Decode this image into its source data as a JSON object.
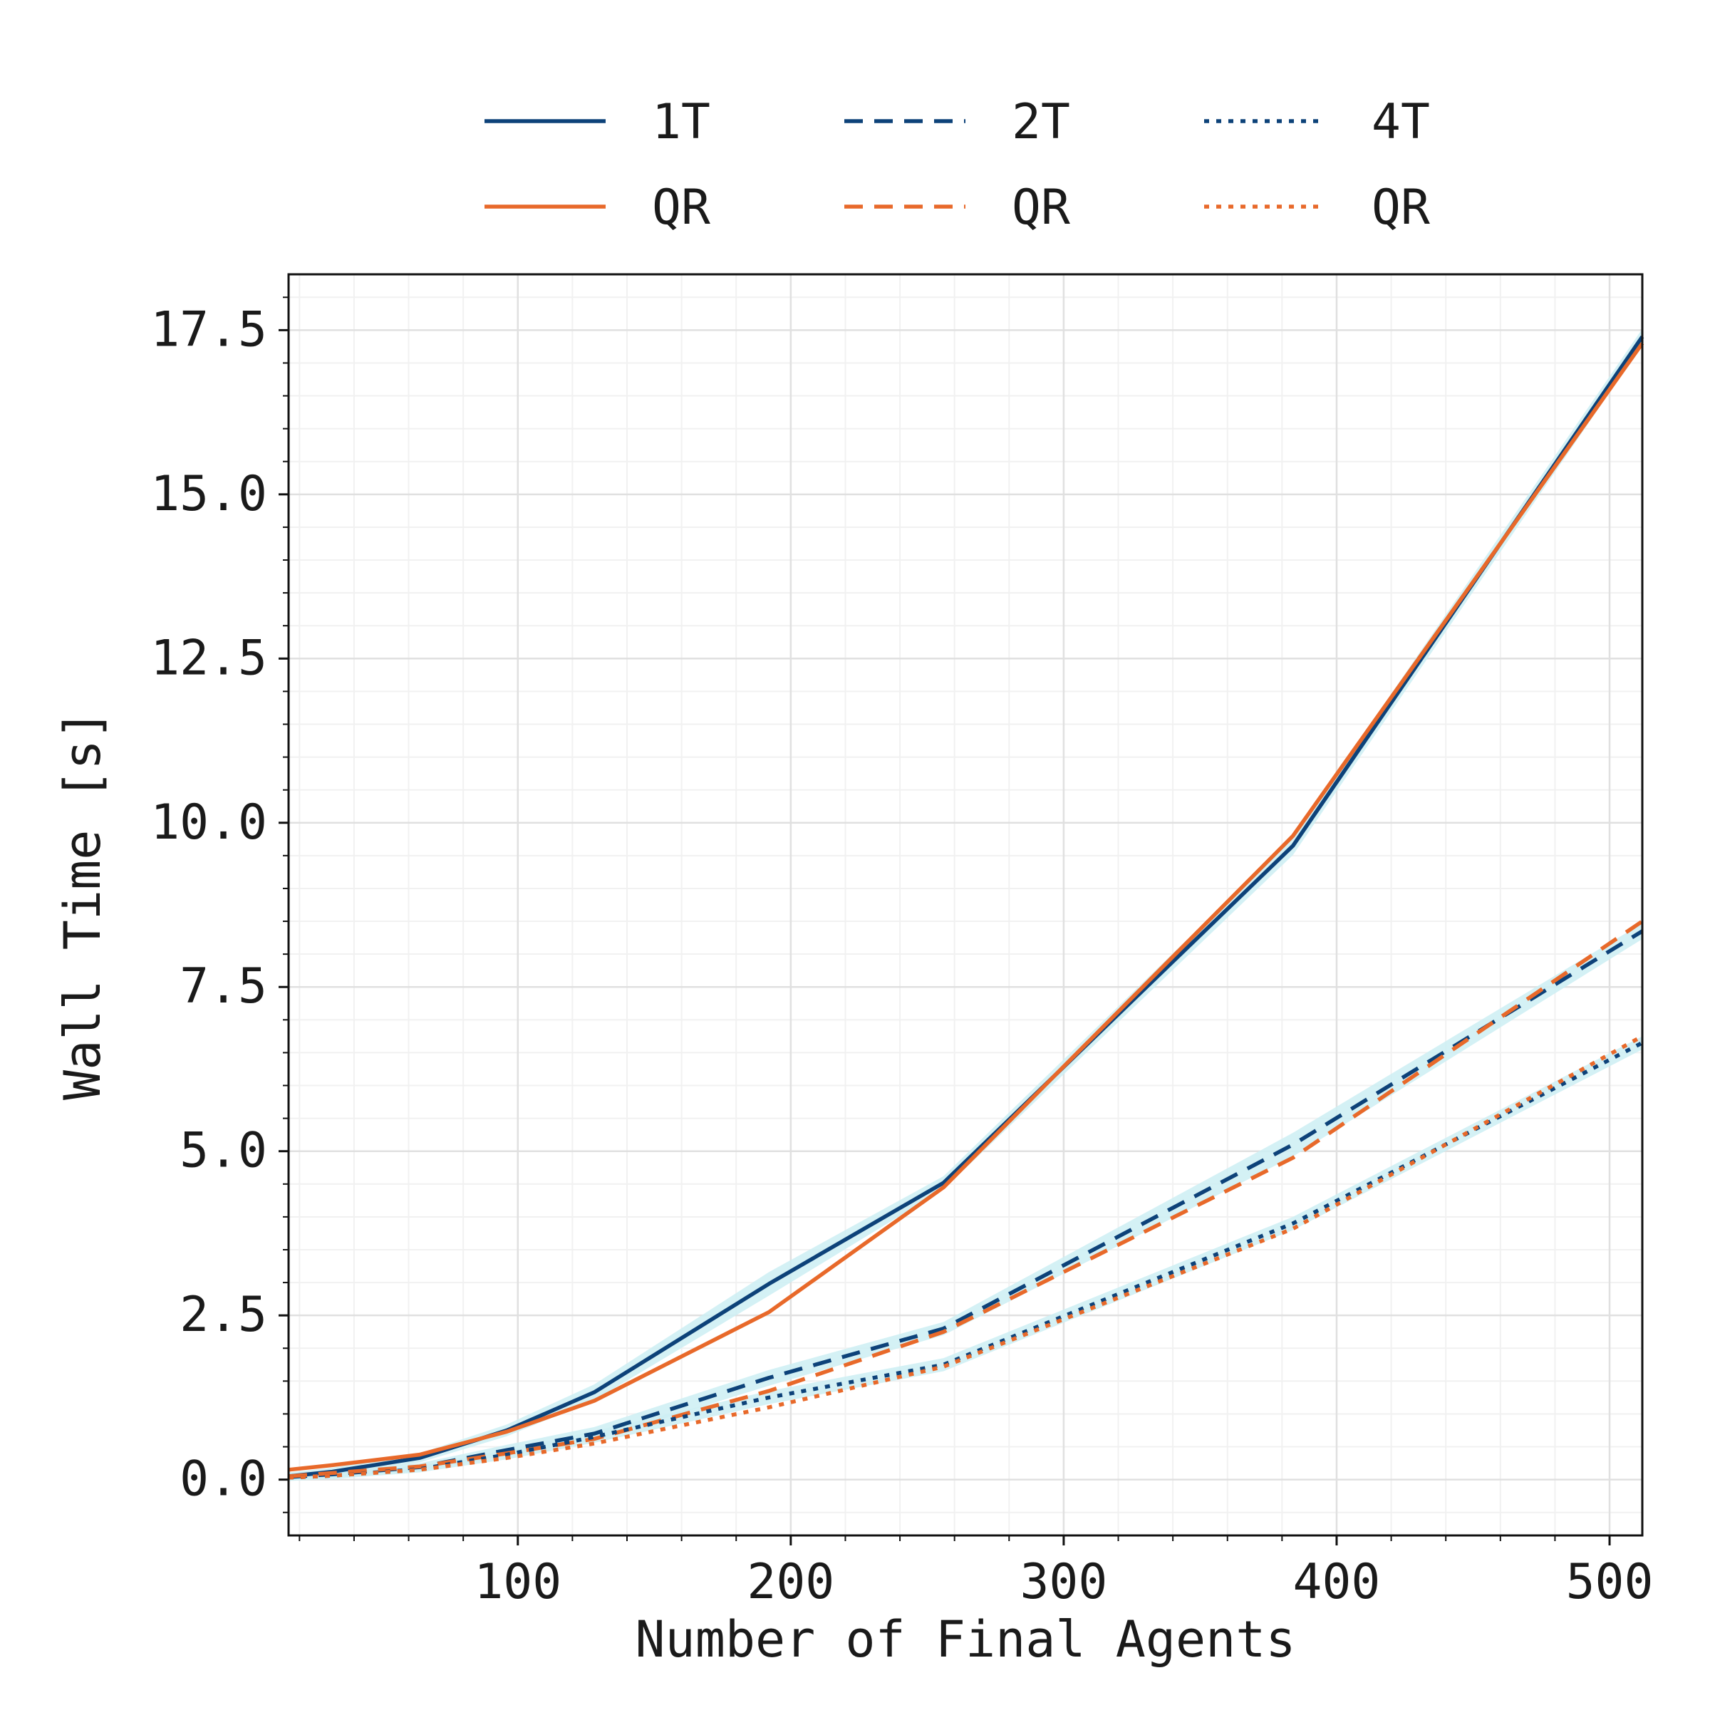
{
  "chart_data": {
    "type": "line",
    "xlabel": "Number of Final Agents",
    "ylabel": "Wall Time [s]",
    "xlim": [
      16,
      512
    ],
    "ylim": [
      -0.85,
      18.35
    ],
    "xticks": [
      100,
      200,
      300,
      400,
      500
    ],
    "xtick_labels": [
      "100",
      "200",
      "300",
      "400",
      "500"
    ],
    "yticks": [
      0,
      2.5,
      5,
      7.5,
      10,
      12.5,
      15,
      17.5
    ],
    "ytick_labels": [
      "0.0",
      "2.5",
      "5.0",
      "7.5",
      "10.0",
      "12.5",
      "15.0",
      "17.5"
    ],
    "grid": true,
    "minor_grid": true,
    "legend": {
      "placement": "top, above plot",
      "columns": 3
    },
    "band_color": "#cdeef3",
    "series": [
      {
        "name": "1T",
        "color": "#0d4279",
        "dash": "solid",
        "x": [
          16,
          32,
          64,
          96,
          128,
          192,
          256,
          384,
          512
        ],
        "y": [
          0.05,
          0.12,
          0.33,
          0.75,
          1.33,
          2.98,
          4.52,
          9.65,
          17.4
        ],
        "band": [
          0.06,
          0.06,
          0.07,
          0.09,
          0.12,
          0.18,
          0.1,
          0.14,
          0.12
        ]
      },
      {
        "name": "QR",
        "color": "#e8692a",
        "dash": "solid",
        "x": [
          16,
          32,
          64,
          96,
          128,
          192,
          256,
          384,
          512
        ],
        "y": [
          0.15,
          0.22,
          0.38,
          0.73,
          1.2,
          2.55,
          4.45,
          9.8,
          17.3
        ]
      },
      {
        "name": "2T",
        "color": "#0d4279",
        "dash": "dashed",
        "x": [
          16,
          32,
          64,
          96,
          128,
          192,
          256,
          384,
          512
        ],
        "y": [
          0.04,
          0.08,
          0.19,
          0.45,
          0.7,
          1.55,
          2.3,
          5.1,
          8.35
        ],
        "band": [
          0.05,
          0.05,
          0.06,
          0.08,
          0.1,
          0.12,
          0.1,
          0.18,
          0.12
        ]
      },
      {
        "name": "QR",
        "color": "#e8692a",
        "dash": "dashed",
        "x": [
          16,
          32,
          64,
          96,
          128,
          192,
          256,
          384,
          512
        ],
        "y": [
          0.05,
          0.1,
          0.2,
          0.4,
          0.62,
          1.35,
          2.25,
          4.9,
          8.5
        ]
      },
      {
        "name": "4T",
        "color": "#0d4279",
        "dash": "dotted",
        "x": [
          16,
          32,
          64,
          96,
          128,
          192,
          256,
          384,
          512
        ],
        "y": [
          0.03,
          0.06,
          0.16,
          0.38,
          0.65,
          1.25,
          1.75,
          3.9,
          6.65
        ],
        "band": [
          0.05,
          0.05,
          0.05,
          0.07,
          0.09,
          0.1,
          0.1,
          0.1,
          0.1
        ]
      },
      {
        "name": "QR",
        "color": "#e8692a",
        "dash": "dotted",
        "x": [
          16,
          32,
          64,
          96,
          128,
          192,
          256,
          384,
          512
        ],
        "y": [
          0.03,
          0.06,
          0.15,
          0.33,
          0.55,
          1.1,
          1.72,
          3.82,
          6.75
        ]
      }
    ]
  }
}
